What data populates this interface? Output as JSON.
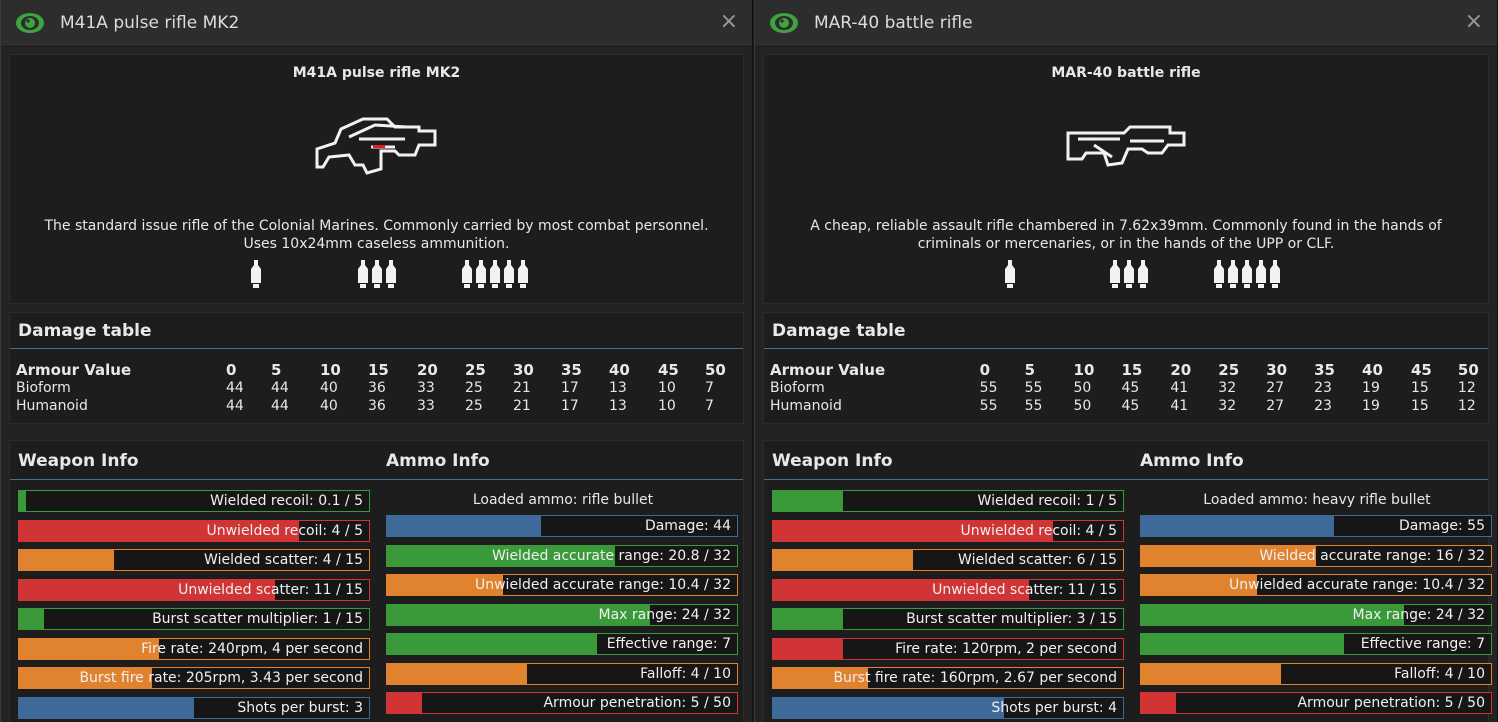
{
  "windows": [
    {
      "title": "M41A pulse rifle MK2",
      "close": "×",
      "gun_name": "M41A pulse rifle MK2",
      "desc1": "The standard issue rifle of the Colonial Marines. Commonly carried by most combat personnel.",
      "desc2": "Uses 10x24mm caseless ammunition.",
      "damage_title": "Damage table",
      "armour_label": "Armour Value",
      "armour_values": [
        "0",
        "5",
        "10",
        "15",
        "20",
        "25",
        "30",
        "35",
        "40",
        "45",
        "50"
      ],
      "rows": [
        {
          "label": "Bioform",
          "values": [
            "44",
            "44",
            "40",
            "36",
            "33",
            "25",
            "21",
            "17",
            "13",
            "10",
            "7"
          ]
        },
        {
          "label": "Humanoid",
          "values": [
            "44",
            "44",
            "40",
            "36",
            "33",
            "25",
            "21",
            "17",
            "13",
            "10",
            "7"
          ]
        }
      ],
      "weapon_info_title": "Weapon Info",
      "ammo_info_title": "Ammo Info",
      "weapon_bars": [
        {
          "label": "Wielded recoil: 0.1 / 5",
          "fraction": 0.02,
          "color": "#3a9a3a"
        },
        {
          "label": "Unwielded recoil: 4 / 5",
          "fraction": 0.8,
          "color": "#d03434"
        },
        {
          "label": "Wielded scatter: 4 / 15",
          "fraction": 0.27,
          "color": "#e0822e"
        },
        {
          "label": "Unwielded scatter: 11 / 15",
          "fraction": 0.73,
          "color": "#d03434"
        },
        {
          "label": "Burst scatter multiplier: 1 / 15",
          "fraction": 0.07,
          "color": "#3a9a3a"
        },
        {
          "label": "Fire rate: 240rpm, 4 per second",
          "fraction": 0.4,
          "color": "#e0822e"
        },
        {
          "label": "Burst fire rate: 205rpm, 3.43 per second",
          "fraction": 0.38,
          "color": "#e0822e"
        },
        {
          "label": "Shots per burst: 3",
          "fraction": 0.5,
          "color": "#3e6a99"
        }
      ],
      "loaded_ammo": "Loaded ammo: rifle bullet",
      "ammo_bars": [
        {
          "label": "Damage: 44",
          "fraction": 0.44,
          "color": "#3e6a99"
        },
        {
          "label": "Wielded accurate range: 20.8 / 32",
          "fraction": 0.65,
          "color": "#3a9a3a"
        },
        {
          "label": "Unwielded accurate range: 10.4 / 32",
          "fraction": 0.33,
          "color": "#e0822e"
        },
        {
          "label": "Max range: 24 / 32",
          "fraction": 0.75,
          "color": "#3a9a3a"
        },
        {
          "label": "Effective range: 7",
          "fraction": 0.6,
          "color": "#3a9a3a"
        },
        {
          "label": "Falloff: 4 / 10",
          "fraction": 0.4,
          "color": "#e0822e"
        },
        {
          "label": "Armour penetration: 5 / 50",
          "fraction": 0.1,
          "color": "#d03434"
        }
      ]
    },
    {
      "title": "MAR-40 battle rifle",
      "close": "×",
      "gun_name": "MAR-40 battle rifle",
      "desc1": "A cheap, reliable assault rifle chambered in 7.62x39mm. Commonly found in the hands of",
      "desc2": "criminals or mercenaries, or in the hands of the UPP or CLF.",
      "damage_title": "Damage table",
      "armour_label": "Armour Value",
      "armour_values": [
        "0",
        "5",
        "10",
        "15",
        "20",
        "25",
        "30",
        "35",
        "40",
        "45",
        "50"
      ],
      "rows": [
        {
          "label": "Bioform",
          "values": [
            "55",
            "55",
            "50",
            "45",
            "41",
            "32",
            "27",
            "23",
            "19",
            "15",
            "12"
          ]
        },
        {
          "label": "Humanoid",
          "values": [
            "55",
            "55",
            "50",
            "45",
            "41",
            "32",
            "27",
            "23",
            "19",
            "15",
            "12"
          ]
        }
      ],
      "weapon_info_title": "Weapon Info",
      "ammo_info_title": "Ammo Info",
      "weapon_bars": [
        {
          "label": "Wielded recoil: 1 / 5",
          "fraction": 0.2,
          "color": "#3a9a3a"
        },
        {
          "label": "Unwielded recoil: 4 / 5",
          "fraction": 0.8,
          "color": "#d03434"
        },
        {
          "label": "Wielded scatter: 6 / 15",
          "fraction": 0.4,
          "color": "#e0822e"
        },
        {
          "label": "Unwielded scatter: 11 / 15",
          "fraction": 0.73,
          "color": "#d03434"
        },
        {
          "label": "Burst scatter multiplier: 3 / 15",
          "fraction": 0.2,
          "color": "#3a9a3a"
        },
        {
          "label": "Fire rate: 120rpm, 2 per second",
          "fraction": 0.2,
          "color": "#d03434"
        },
        {
          "label": "Burst fire rate: 160rpm, 2.67 per second",
          "fraction": 0.27,
          "color": "#e0822e"
        },
        {
          "label": "Shots per burst: 4",
          "fraction": 0.66,
          "color": "#3e6a99"
        }
      ],
      "loaded_ammo": "Loaded ammo: heavy rifle bullet",
      "ammo_bars": [
        {
          "label": "Damage: 55",
          "fraction": 0.55,
          "color": "#3e6a99"
        },
        {
          "label": "Wielded accurate range: 16 / 32",
          "fraction": 0.5,
          "color": "#e0822e"
        },
        {
          "label": "Unwielded accurate range: 10.4 / 32",
          "fraction": 0.33,
          "color": "#e0822e"
        },
        {
          "label": "Max range: 24 / 32",
          "fraction": 0.75,
          "color": "#3a9a3a"
        },
        {
          "label": "Effective range: 7",
          "fraction": 0.58,
          "color": "#3a9a3a"
        },
        {
          "label": "Falloff: 4 / 10",
          "fraction": 0.4,
          "color": "#e0822e"
        },
        {
          "label": "Armour penetration: 5 / 50",
          "fraction": 0.1,
          "color": "#d03434"
        }
      ]
    }
  ]
}
